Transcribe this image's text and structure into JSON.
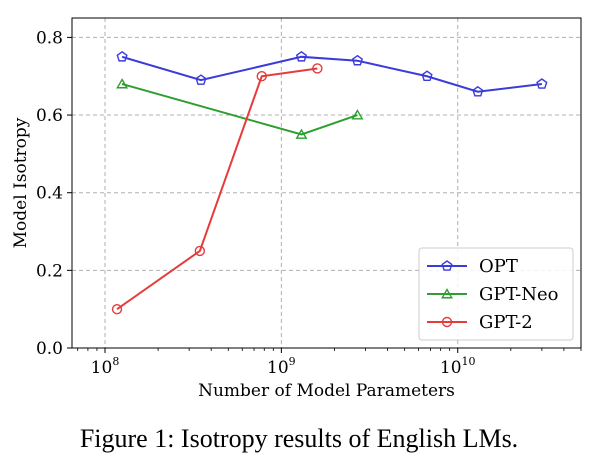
{
  "chart_data": {
    "type": "line",
    "xscale": "log",
    "xlim": [
      65000000,
      50000000000
    ],
    "ylim": [
      0.0,
      0.85
    ],
    "xlabel": "Number of Model Parameters",
    "ylabel": "Model Isotropy",
    "grid": true,
    "legend_position": "lower-right",
    "xticks": [
      {
        "value": 100000000,
        "base": "10",
        "exp": "8"
      },
      {
        "value": 1000000000,
        "base": "10",
        "exp": "9"
      },
      {
        "value": 10000000000,
        "base": "10",
        "exp": "10"
      }
    ],
    "yticks": [
      {
        "value": 0.0,
        "label": "0.0"
      },
      {
        "value": 0.2,
        "label": "0.2"
      },
      {
        "value": 0.4,
        "label": "0.4"
      },
      {
        "value": 0.6,
        "label": "0.6"
      },
      {
        "value": 0.8,
        "label": "0.8"
      }
    ],
    "series": [
      {
        "name": "OPT",
        "color": "#3b3bdb",
        "marker": "pentagon",
        "x": [
          125000000,
          350000000,
          1300000000,
          2700000000,
          6700000000,
          13000000000,
          30000000000
        ],
        "y": [
          0.75,
          0.69,
          0.75,
          0.74,
          0.7,
          0.66,
          0.68
        ]
      },
      {
        "name": "GPT-Neo",
        "color": "#2e9e2e",
        "marker": "triangle",
        "x": [
          125000000,
          1300000000,
          2700000000
        ],
        "y": [
          0.68,
          0.55,
          0.6
        ]
      },
      {
        "name": "GPT-2",
        "color": "#e63b3b",
        "marker": "circle",
        "x": [
          117000000,
          345000000,
          774000000,
          1600000000
        ],
        "y": [
          0.1,
          0.25,
          0.7,
          0.72
        ]
      }
    ]
  },
  "caption": "Figure 1: Isotropy results of English LMs."
}
